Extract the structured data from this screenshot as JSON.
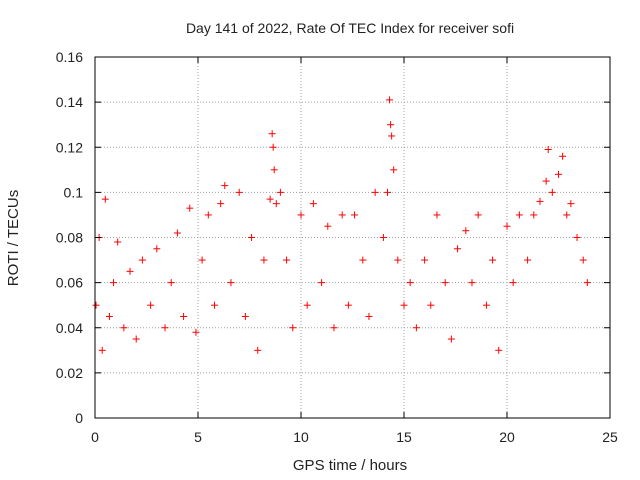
{
  "chart_data": {
    "type": "scatter",
    "title": "Day 141 of 2022, Rate Of TEC Index for receiver sofi",
    "xlabel": "GPS time / hours",
    "ylabel": "ROTI / TECUs",
    "xlim": [
      0,
      25
    ],
    "ylim": [
      0,
      0.16
    ],
    "x_ticks": [
      "0",
      "5",
      "10",
      "15",
      "20",
      "25"
    ],
    "y_ticks": [
      "0",
      "0.02",
      "0.04",
      "0.06",
      "0.08",
      "0.1",
      "0.12",
      "0.14",
      "0.16"
    ],
    "grid": true,
    "marker": "+",
    "color": "#ff0000",
    "series": [
      {
        "x": [
          0.05,
          0.2,
          0.35,
          0.5,
          0.7,
          0.9,
          1.1,
          1.4,
          1.7,
          2.0,
          2.3,
          2.7,
          3.0,
          3.4,
          3.7,
          4.0,
          4.3,
          4.6,
          4.9,
          5.2,
          5.5,
          5.8,
          6.1,
          6.3,
          6.6,
          7.0,
          7.3,
          7.6,
          7.9,
          8.2,
          8.5,
          8.6,
          8.65,
          8.7,
          8.8,
          9.0,
          9.3,
          9.6,
          10.0,
          10.3,
          10.6,
          11.0,
          11.3,
          11.6,
          12.0,
          12.3,
          12.6,
          13.0,
          13.3,
          13.6,
          14.0,
          14.2,
          14.3,
          14.35,
          14.4,
          14.5,
          14.7,
          15.0,
          15.3,
          15.6,
          16.0,
          16.3,
          16.6,
          17.0,
          17.3,
          17.6,
          18.0,
          18.3,
          18.6,
          19.0,
          19.3,
          19.6,
          20.0,
          20.3,
          20.6,
          21.0,
          21.3,
          21.6,
          21.9,
          22.0,
          22.2,
          22.5,
          22.7,
          22.9,
          23.1,
          23.4,
          23.7,
          23.9
        ],
        "y": [
          0.05,
          0.08,
          0.03,
          0.097,
          0.045,
          0.06,
          0.078,
          0.04,
          0.065,
          0.035,
          0.07,
          0.05,
          0.075,
          0.04,
          0.06,
          0.082,
          0.045,
          0.093,
          0.038,
          0.07,
          0.09,
          0.05,
          0.095,
          0.103,
          0.06,
          0.1,
          0.045,
          0.08,
          0.03,
          0.07,
          0.097,
          0.126,
          0.12,
          0.11,
          0.095,
          0.1,
          0.07,
          0.04,
          0.09,
          0.05,
          0.095,
          0.06,
          0.085,
          0.04,
          0.09,
          0.05,
          0.09,
          0.07,
          0.045,
          0.1,
          0.08,
          0.1,
          0.141,
          0.13,
          0.125,
          0.11,
          0.07,
          0.05,
          0.06,
          0.04,
          0.07,
          0.05,
          0.09,
          0.06,
          0.035,
          0.075,
          0.083,
          0.06,
          0.09,
          0.05,
          0.07,
          0.03,
          0.085,
          0.06,
          0.09,
          0.07,
          0.09,
          0.096,
          0.105,
          0.119,
          0.1,
          0.108,
          0.116,
          0.09,
          0.095,
          0.08,
          0.07,
          0.06
        ]
      }
    ]
  }
}
